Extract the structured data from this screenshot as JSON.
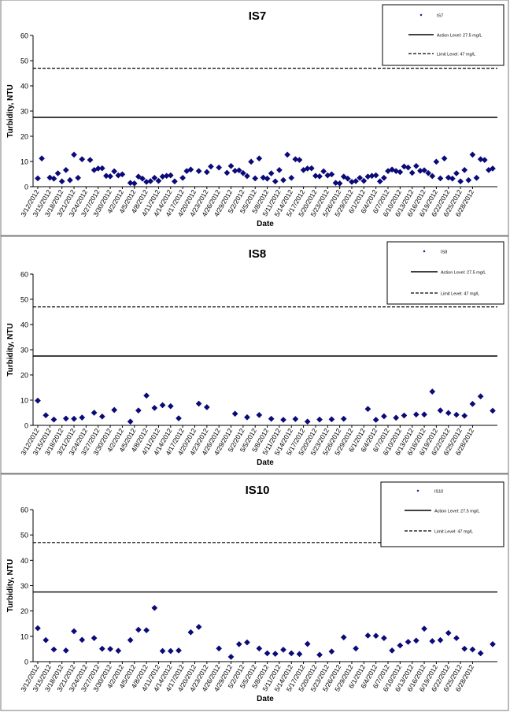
{
  "chart_data": [
    {
      "type": "scatter",
      "title": "IS7",
      "xlabel": "Date",
      "ylabel": "Turbidity, NTU",
      "ylim": [
        0,
        60
      ],
      "yticks": [
        0,
        10,
        20,
        30,
        40,
        50,
        60
      ],
      "x_tick_labels": [
        "3/12/2012",
        "3/15/2012",
        "3/18/2012",
        "3/21/2012",
        "3/24/2012",
        "3/27/2012",
        "3/30/2012",
        "4/2/2012",
        "4/5/2012",
        "4/8/2012",
        "4/11/2012",
        "4/14/2012",
        "4/17/2012",
        "4/20/2012",
        "4/23/2012",
        "4/26/2012",
        "4/29/2012",
        "5/2/2012",
        "5/5/2012",
        "5/8/2012",
        "5/11/2012",
        "5/14/2012",
        "5/17/2012",
        "5/20/2012",
        "5/23/2012",
        "5/26/2012",
        "5/29/2012",
        "6/1/2012",
        "6/4/2012",
        "6/7/2012",
        "6/10/2012",
        "6/13/2012",
        "6/16/2012",
        "6/19/2012",
        "6/22/2012",
        "6/25/2012",
        "6/28/2012"
      ],
      "legend_position": "top-right",
      "legend": [
        "IS7",
        "Action Level: 27.5 mg/L",
        "Limit Level: 47 mg/L"
      ],
      "action_level": 27.5,
      "limit_level": 47,
      "series": [
        {
          "name": "IS7",
          "x_days": [
            0,
            1,
            3,
            4,
            5,
            6,
            7,
            8,
            9,
            10,
            11,
            13,
            14,
            15,
            16,
            17,
            18,
            19,
            20,
            21,
            23,
            24,
            25,
            26,
            27,
            28,
            29,
            30,
            31,
            32,
            33,
            34,
            36,
            37,
            38,
            40,
            42,
            43,
            45,
            47,
            48,
            49,
            50,
            51,
            52,
            53,
            54,
            55,
            56,
            57,
            58,
            59,
            60,
            61,
            62,
            63,
            64,
            65,
            66,
            67,
            68,
            69,
            70,
            71,
            72,
            73,
            74,
            75,
            76,
            77,
            78,
            79,
            80,
            81,
            82,
            83,
            84,
            85,
            86,
            87,
            88,
            89,
            90,
            91,
            92,
            93,
            94,
            95,
            96,
            97,
            98,
            99,
            100,
            101,
            102,
            103,
            104,
            105,
            106,
            107,
            108,
            109,
            110,
            111,
            112,
            113
          ],
          "values": [
            3.3,
            11.2,
            3.6,
            3.2,
            5.3,
            2.1,
            6.6,
            2.6,
            12.7,
            3.5,
            10.9,
            10.6,
            6.6,
            7.2,
            7.3,
            4.3,
            4.1,
            6.1,
            4.5,
            4.9,
            1.5,
            1.3,
            4.0,
            3.2,
            1.9,
            2.2,
            3.5,
            2.3,
            4.0,
            4.3,
            4.5,
            2.1,
            3.5,
            6.2,
            6.8,
            6.2,
            5.8,
            8.0,
            7.6,
            5.5,
            8.2,
            6.3,
            6.5,
            5.4,
            4.2,
            9.9,
            3.3,
            11.2,
            3.6,
            3.2,
            5.3,
            2.1,
            6.6,
            2.6,
            12.7,
            3.5,
            10.9,
            10.6,
            6.6,
            7.2,
            7.3,
            4.3,
            4.1,
            6.1,
            4.5,
            4.9,
            1.5,
            1.3,
            4.0,
            3.2,
            1.9,
            2.2,
            3.5,
            2.3,
            4.0,
            4.3,
            4.5,
            2.1,
            3.5,
            6.2,
            6.8,
            6.2,
            5.8,
            8.0,
            7.6,
            5.5,
            8.2,
            6.3,
            6.5,
            5.4,
            4.2,
            9.9,
            3.3,
            11.2,
            3.6,
            3.2,
            5.3,
            2.1,
            6.6,
            2.6,
            12.7,
            3.5,
            10.9,
            10.6,
            6.6,
            7.2
          ]
        }
      ]
    },
    {
      "type": "scatter",
      "title": "IS8",
      "xlabel": "Date",
      "ylabel": "Turbidity, NTU",
      "ylim": [
        0,
        60
      ],
      "yticks": [
        0,
        10,
        20,
        30,
        40,
        50,
        60
      ],
      "x_tick_labels": [
        "3/12/2012",
        "3/15/2012",
        "3/18/2012",
        "3/21/2012",
        "3/24/2012",
        "3/27/2012",
        "3/30/2012",
        "4/2/2012",
        "4/5/2012",
        "4/8/2012",
        "4/11/2012",
        "4/14/2012",
        "4/17/2012",
        "4/20/2012",
        "4/23/2012",
        "4/26/2012",
        "4/29/2012",
        "5/2/2012",
        "5/5/2012",
        "5/8/2012",
        "5/11/2012",
        "5/14/2012",
        "5/17/2012",
        "5/20/2012",
        "5/23/2012",
        "5/26/2012",
        "5/29/2012",
        "6/1/2012",
        "6/4/2012",
        "6/7/2012",
        "6/10/2012",
        "6/13/2012",
        "6/16/2012",
        "6/19/2012",
        "6/22/2012",
        "6/25/2012",
        "6/28/2012"
      ],
      "legend_position": "top-right",
      "legend": [
        "IS8",
        "Action Level: 27.5 mg/L",
        "Limit Level: 47 mg/L"
      ],
      "action_level": 27.5,
      "limit_level": 47,
      "series": [
        {
          "name": "IS8",
          "x_days": [
            0,
            2,
            4,
            7,
            9,
            11,
            14,
            16,
            19,
            23,
            25,
            27,
            29,
            31,
            33,
            35,
            40,
            42,
            49,
            52,
            55,
            58,
            61,
            64,
            67,
            70,
            73,
            76,
            82,
            84,
            86,
            89,
            91,
            94,
            96,
            98,
            100,
            102,
            104,
            106,
            108,
            110,
            113
          ],
          "values": [
            9.8,
            4.0,
            2.3,
            2.7,
            2.6,
            3.1,
            5.0,
            3.5,
            6.1,
            1.5,
            5.9,
            11.8,
            6.9,
            8.0,
            7.6,
            2.8,
            8.6,
            7.2,
            4.6,
            3.2,
            4.1,
            2.6,
            2.2,
            2.5,
            1.5,
            2.3,
            2.4,
            2.6,
            6.5,
            2.2,
            3.6,
            3.0,
            3.9,
            4.3,
            4.3,
            13.4,
            5.9,
            4.9,
            4.2,
            3.8,
            8.5,
            11.5,
            5.8
          ]
        }
      ]
    },
    {
      "type": "scatter",
      "title": "IS10",
      "xlabel": "Date",
      "ylabel": "Turbidity, NTU",
      "ylim": [
        0,
        60
      ],
      "yticks": [
        0,
        10,
        20,
        30,
        40,
        50,
        60
      ],
      "x_tick_labels": [
        "3/12/2012",
        "3/15/2012",
        "3/18/2012",
        "3/21/2012",
        "3/24/2012",
        "3/27/2012",
        "3/30/2012",
        "4/2/2012",
        "4/5/2012",
        "4/8/2012",
        "4/11/2012",
        "4/14/2012",
        "4/17/2012",
        "4/20/2012",
        "4/23/2012",
        "4/26/2012",
        "4/29/2012",
        "5/2/2012",
        "5/5/2012",
        "5/8/2012",
        "5/11/2012",
        "5/14/2012",
        "5/17/2012",
        "5/20/2012",
        "5/23/2012",
        "5/26/2012",
        "5/29/2012",
        "6/1/2012",
        "6/4/2012",
        "6/7/2012",
        "6/10/2012",
        "6/13/2012",
        "6/16/2012",
        "6/19/2012",
        "6/22/2012",
        "6/25/2012",
        "6/28/2012"
      ],
      "legend_position": "top-right",
      "legend": [
        "IS10",
        "Action Level: 27.5 mg/L",
        "Limit Level: 47 mg/L"
      ],
      "action_level": 27.5,
      "limit_level": 47,
      "series": [
        {
          "name": "IS10",
          "x_days": [
            0,
            2,
            4,
            7,
            9,
            11,
            14,
            16,
            18,
            20,
            23,
            25,
            27,
            29,
            31,
            33,
            35,
            38,
            40,
            45,
            48,
            50,
            52,
            55,
            57,
            59,
            61,
            63,
            65,
            67,
            70,
            73,
            76,
            79,
            82,
            84,
            86,
            88,
            90,
            92,
            94,
            96,
            98,
            100,
            102,
            104,
            106,
            108,
            110,
            113
          ],
          "values": [
            13.2,
            8.5,
            4.8,
            4.4,
            12.0,
            8.6,
            9.3,
            5.1,
            5.0,
            4.3,
            8.5,
            12.6,
            12.4,
            21.2,
            4.2,
            4.2,
            4.4,
            11.6,
            13.7,
            5.2,
            1.9,
            6.9,
            7.6,
            5.2,
            3.3,
            3.1,
            4.7,
            3.3,
            3.0,
            7.0,
            2.7,
            4.0,
            9.6,
            5.2,
            10.3,
            10.2,
            9.3,
            4.4,
            6.4,
            7.8,
            8.3,
            13.0,
            8.1,
            8.5,
            11.3,
            9.3,
            5.1,
            4.8,
            3.3,
            6.9
          ]
        }
      ]
    }
  ]
}
